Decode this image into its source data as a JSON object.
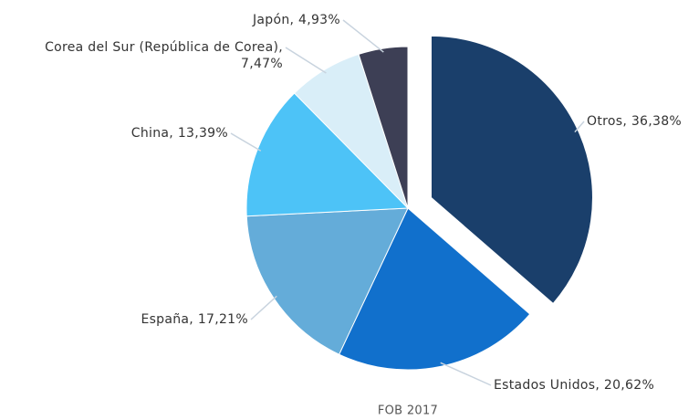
{
  "chart_data": {
    "type": "pie",
    "subtitle": "FOB 2017",
    "categories": [
      "Otros",
      "Estados Unidos",
      "España",
      "China",
      "Corea del Sur (República de Corea)",
      "Japón"
    ],
    "values": [
      36.38,
      20.62,
      17.21,
      13.39,
      7.47,
      4.93
    ],
    "value_labels": [
      "36,38%",
      "20,62%",
      "17,21%",
      "13,39%",
      "7,47%",
      "4,93%"
    ],
    "colors": [
      "#1a3f6b",
      "#1170cc",
      "#64acd9",
      "#4dc3f7",
      "#d9eef8",
      "#3d3f55"
    ]
  }
}
